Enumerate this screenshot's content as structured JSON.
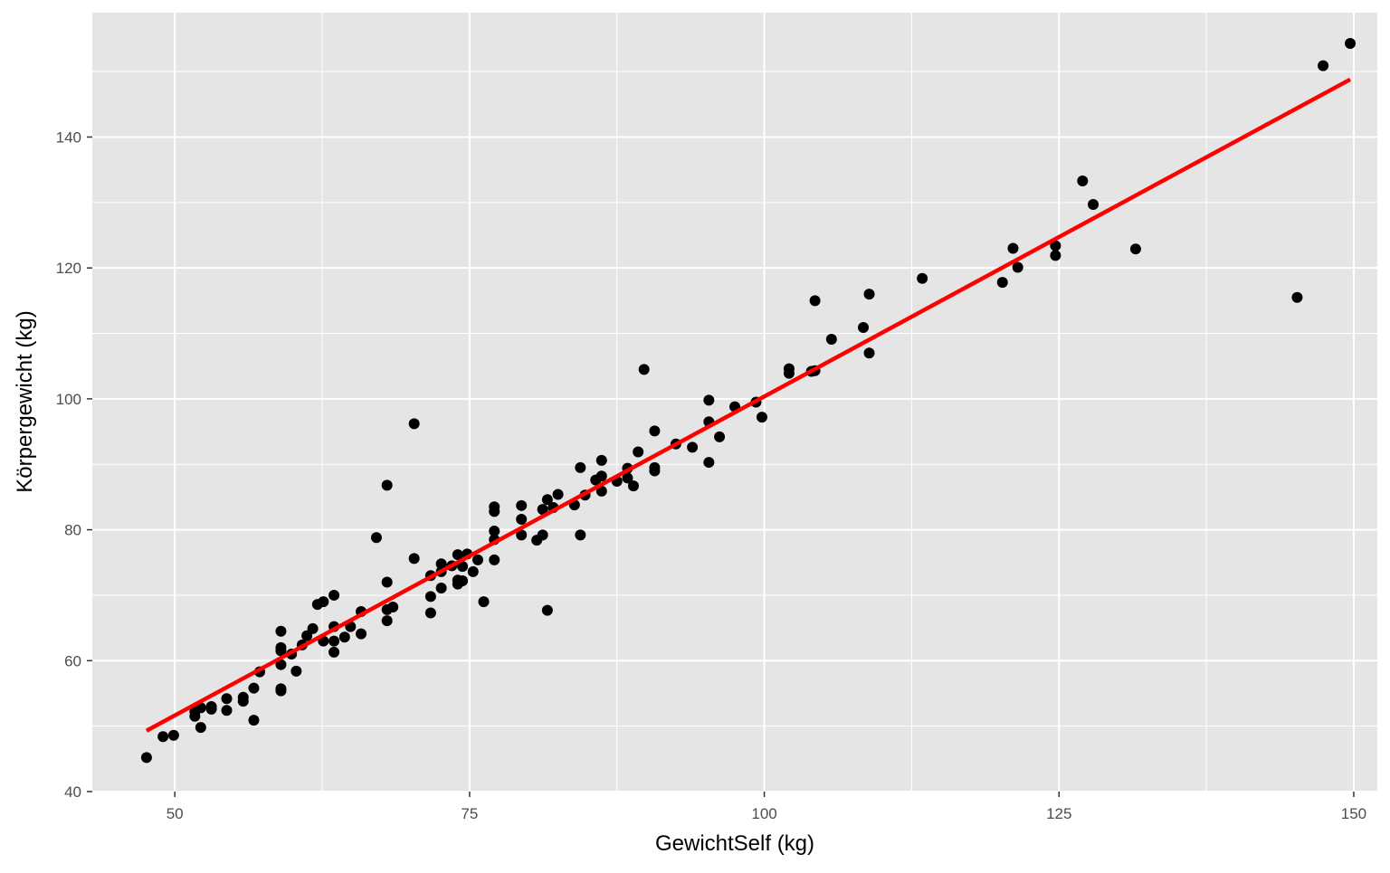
{
  "chart_data": {
    "type": "scatter",
    "xlabel": "GewichtSelf (kg)",
    "ylabel": "Körpergewicht (kg)",
    "xlim": [
      43,
      152
    ],
    "ylim": [
      40,
      159
    ],
    "x_ticks": [
      50,
      75,
      100,
      125,
      150
    ],
    "y_ticks": [
      40,
      60,
      80,
      100,
      120,
      140
    ],
    "grid": true,
    "background_color": "#e5e5e5",
    "grid_color": "#ffffff",
    "point_color": "#000000",
    "fit_line": {
      "color": "#ff0000",
      "x": [
        47.6,
        149.7
      ],
      "y": [
        49.3,
        148.8
      ]
    },
    "points": [
      [
        47.6,
        45.2
      ],
      [
        49.0,
        48.4
      ],
      [
        49.9,
        48.6
      ],
      [
        51.7,
        51.5
      ],
      [
        51.7,
        52.2
      ],
      [
        52.2,
        49.8
      ],
      [
        52.2,
        52.8
      ],
      [
        53.1,
        52.6
      ],
      [
        53.1,
        53.0
      ],
      [
        54.4,
        52.4
      ],
      [
        54.4,
        54.2
      ],
      [
        55.8,
        53.8
      ],
      [
        55.8,
        54.4
      ],
      [
        56.7,
        50.9
      ],
      [
        56.7,
        55.8
      ],
      [
        57.2,
        58.3
      ],
      [
        59.0,
        55.7
      ],
      [
        59.0,
        55.4
      ],
      [
        59.0,
        59.4
      ],
      [
        59.0,
        61.5
      ],
      [
        59.0,
        62.0
      ],
      [
        59.0,
        64.5
      ],
      [
        59.9,
        61.0
      ],
      [
        60.3,
        58.4
      ],
      [
        60.8,
        62.4
      ],
      [
        61.2,
        63.8
      ],
      [
        61.7,
        64.9
      ],
      [
        62.1,
        68.6
      ],
      [
        62.6,
        69.0
      ],
      [
        62.6,
        63.0
      ],
      [
        63.5,
        61.3
      ],
      [
        63.5,
        63.0
      ],
      [
        63.5,
        65.2
      ],
      [
        63.5,
        70.0
      ],
      [
        64.4,
        63.6
      ],
      [
        64.9,
        65.2
      ],
      [
        65.8,
        64.1
      ],
      [
        65.8,
        67.5
      ],
      [
        67.1,
        78.8
      ],
      [
        68.0,
        66.1
      ],
      [
        68.0,
        67.8
      ],
      [
        68.0,
        72.0
      ],
      [
        68.0,
        86.8
      ],
      [
        68.5,
        68.2
      ],
      [
        70.3,
        75.6
      ],
      [
        70.3,
        96.2
      ],
      [
        71.7,
        69.8
      ],
      [
        71.7,
        67.3
      ],
      [
        71.7,
        73.0
      ],
      [
        72.6,
        71.1
      ],
      [
        72.6,
        73.6
      ],
      [
        72.6,
        74.8
      ],
      [
        73.5,
        74.5
      ],
      [
        74.0,
        71.7
      ],
      [
        74.0,
        72.3
      ],
      [
        74.0,
        76.2
      ],
      [
        74.4,
        72.2
      ],
      [
        74.4,
        74.4
      ],
      [
        74.8,
        76.3
      ],
      [
        75.3,
        73.6
      ],
      [
        75.7,
        75.4
      ],
      [
        76.2,
        69.0
      ],
      [
        77.1,
        75.4
      ],
      [
        77.1,
        78.5
      ],
      [
        77.1,
        79.8
      ],
      [
        77.1,
        82.8
      ],
      [
        77.1,
        83.5
      ],
      [
        79.4,
        79.2
      ],
      [
        79.4,
        81.6
      ],
      [
        79.4,
        83.7
      ],
      [
        80.7,
        78.4
      ],
      [
        81.2,
        79.2
      ],
      [
        81.2,
        83.1
      ],
      [
        81.6,
        67.7
      ],
      [
        81.6,
        84.6
      ],
      [
        82.1,
        83.4
      ],
      [
        82.5,
        85.4
      ],
      [
        83.9,
        83.8
      ],
      [
        84.4,
        79.2
      ],
      [
        84.4,
        89.5
      ],
      [
        84.8,
        85.3
      ],
      [
        85.7,
        87.6
      ],
      [
        86.2,
        85.9
      ],
      [
        86.2,
        88.2
      ],
      [
        86.2,
        90.6
      ],
      [
        87.5,
        87.4
      ],
      [
        88.4,
        87.9
      ],
      [
        88.4,
        89.4
      ],
      [
        88.9,
        86.7
      ],
      [
        89.3,
        91.9
      ],
      [
        89.8,
        104.5
      ],
      [
        90.7,
        89.0
      ],
      [
        90.7,
        89.5
      ],
      [
        90.7,
        95.1
      ],
      [
        92.5,
        93.1
      ],
      [
        93.9,
        92.6
      ],
      [
        95.3,
        90.3
      ],
      [
        95.3,
        96.5
      ],
      [
        95.3,
        99.8
      ],
      [
        96.2,
        94.2
      ],
      [
        97.5,
        98.8
      ],
      [
        99.3,
        99.5
      ],
      [
        99.8,
        97.2
      ],
      [
        102.1,
        103.9
      ],
      [
        102.1,
        104.6
      ],
      [
        104.0,
        104.2
      ],
      [
        104.3,
        104.3
      ],
      [
        104.3,
        115.0
      ],
      [
        105.7,
        109.1
      ],
      [
        108.4,
        110.9
      ],
      [
        108.9,
        107.0
      ],
      [
        108.9,
        116.0
      ],
      [
        113.4,
        118.4
      ],
      [
        120.2,
        117.8
      ],
      [
        121.1,
        123.0
      ],
      [
        121.5,
        120.1
      ],
      [
        124.7,
        121.9
      ],
      [
        124.7,
        123.4
      ],
      [
        127.0,
        133.3
      ],
      [
        127.9,
        129.7
      ],
      [
        131.5,
        122.9
      ],
      [
        145.2,
        115.5
      ],
      [
        147.4,
        150.9
      ],
      [
        149.7,
        154.3
      ]
    ]
  }
}
